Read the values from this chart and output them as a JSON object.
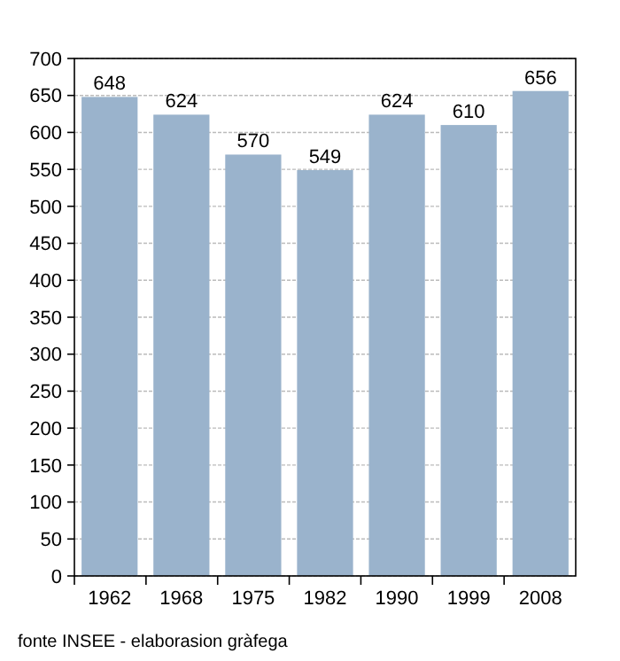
{
  "chart_data": {
    "type": "bar",
    "categories": [
      "1962",
      "1968",
      "1975",
      "1982",
      "1990",
      "1999",
      "2008"
    ],
    "values": [
      648,
      624,
      570,
      549,
      624,
      610,
      656
    ],
    "color": "#9ab3cc",
    "data_labels": true,
    "grid": "y",
    "ylim": [
      0,
      700
    ],
    "yticks": [
      0,
      50,
      100,
      150,
      200,
      250,
      300,
      350,
      400,
      450,
      500,
      550,
      600,
      650,
      700
    ],
    "annotations": [
      "fonte INSEE - elaborasion gràfega"
    ]
  }
}
